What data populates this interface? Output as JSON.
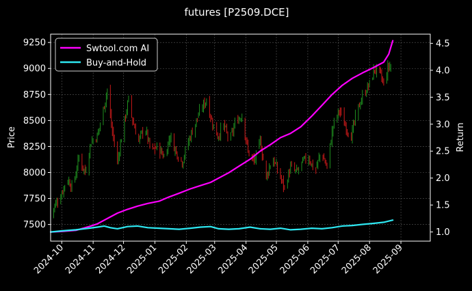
{
  "chart_data": {
    "type": "line",
    "title": "futures [P2509.DCE]",
    "ylabel_left": "Price",
    "ylabel_right": "Return",
    "x_ticks": [
      "2024-10",
      "2024-11",
      "2024-12",
      "2025-01",
      "2025-02",
      "2025-03",
      "2025-04",
      "2025-05",
      "2025-06",
      "2025-07",
      "2025-08",
      "2025-09"
    ],
    "x_range": [
      "2024-09-20",
      "2025-09-30"
    ],
    "y_left_ticks": [
      7500,
      7750,
      8000,
      8250,
      8500,
      8750,
      9000,
      9250
    ],
    "y_left_range": [
      7340,
      9330
    ],
    "y_right_ticks": [
      1.0,
      1.5,
      2.0,
      2.5,
      3.0,
      3.5,
      4.0,
      4.5
    ],
    "y_right_range": [
      0.83,
      4.67
    ],
    "grid": true,
    "legend_position": "top-left",
    "legend": [
      "Swtool.com AI",
      "Buy-and-Hold"
    ],
    "colors": {
      "ai": "#ff00ff",
      "bh": "#2ee8f2",
      "up": "#1f8f1f",
      "down": "#cc1a1a",
      "grid": "#5a5a5a",
      "background": "#000000",
      "text": "#ffffff"
    },
    "price_keypoints": [
      [
        "2024-09-20",
        7600
      ],
      [
        "2024-09-25",
        7700
      ],
      [
        "2024-10-01",
        7800
      ],
      [
        "2024-10-06",
        7950
      ],
      [
        "2024-10-12",
        7850
      ],
      [
        "2024-10-18",
        8150
      ],
      [
        "2024-10-24",
        8000
      ],
      [
        "2024-10-30",
        8300
      ],
      [
        "2024-11-05",
        8350
      ],
      [
        "2024-11-10",
        8550
      ],
      [
        "2024-11-15",
        8800
      ],
      [
        "2024-11-19",
        8450
      ],
      [
        "2024-11-25",
        8100
      ],
      [
        "2024-12-01",
        8450
      ],
      [
        "2024-12-06",
        8700
      ],
      [
        "2024-12-10",
        8500
      ],
      [
        "2024-12-16",
        8300
      ],
      [
        "2024-12-22",
        8450
      ],
      [
        "2024-12-28",
        8200
      ],
      [
        "2025-01-04",
        8250
      ],
      [
        "2025-01-10",
        8150
      ],
      [
        "2025-01-16",
        8350
      ],
      [
        "2025-01-22",
        8200
      ],
      [
        "2025-01-28",
        8100
      ],
      [
        "2025-02-03",
        8300
      ],
      [
        "2025-02-09",
        8450
      ],
      [
        "2025-02-15",
        8600
      ],
      [
        "2025-02-21",
        8700
      ],
      [
        "2025-02-26",
        8500
      ],
      [
        "2025-03-04",
        8350
      ],
      [
        "2025-03-10",
        8450
      ],
      [
        "2025-03-16",
        8300
      ],
      [
        "2025-03-22",
        8500
      ],
      [
        "2025-03-28",
        8550
      ],
      [
        "2025-04-03",
        8200
      ],
      [
        "2025-04-09",
        8100
      ],
      [
        "2025-04-15",
        8300
      ],
      [
        "2025-04-21",
        7950
      ],
      [
        "2025-04-27",
        8150
      ],
      [
        "2025-05-03",
        8000
      ],
      [
        "2025-05-09",
        7850
      ],
      [
        "2025-05-15",
        8050
      ],
      [
        "2025-05-21",
        8000
      ],
      [
        "2025-05-27",
        8100
      ],
      [
        "2025-06-02",
        8150
      ],
      [
        "2025-06-08",
        8000
      ],
      [
        "2025-06-14",
        8200
      ],
      [
        "2025-06-20",
        8050
      ],
      [
        "2025-06-26",
        8450
      ],
      [
        "2025-07-02",
        8600
      ],
      [
        "2025-07-08",
        8450
      ],
      [
        "2025-07-14",
        8350
      ],
      [
        "2025-07-20",
        8600
      ],
      [
        "2025-07-26",
        8750
      ],
      [
        "2025-08-01",
        8850
      ],
      [
        "2025-08-06",
        9000
      ],
      [
        "2025-08-11",
        8950
      ],
      [
        "2025-08-15",
        8850
      ],
      [
        "2025-08-19",
        9000
      ],
      [
        "2025-08-23",
        9050
      ]
    ],
    "series": [
      {
        "name": "Swtool.com AI",
        "x": [
          "2024-09-20",
          "2024-10-01",
          "2024-10-15",
          "2024-10-28",
          "2024-11-05",
          "2024-11-15",
          "2024-11-25",
          "2024-12-05",
          "2024-12-15",
          "2024-12-25",
          "2025-01-05",
          "2025-01-15",
          "2025-01-25",
          "2025-02-05",
          "2025-02-15",
          "2025-02-25",
          "2025-03-05",
          "2025-03-15",
          "2025-03-25",
          "2025-04-05",
          "2025-04-15",
          "2025-04-25",
          "2025-05-05",
          "2025-05-15",
          "2025-05-25",
          "2025-06-05",
          "2025-06-15",
          "2025-06-25",
          "2025-07-05",
          "2025-07-15",
          "2025-07-25",
          "2025-08-05",
          "2025-08-15",
          "2025-08-20",
          "2025-08-24"
        ],
        "values": [
          1.0,
          1.01,
          1.03,
          1.1,
          1.15,
          1.25,
          1.35,
          1.42,
          1.48,
          1.53,
          1.57,
          1.65,
          1.72,
          1.8,
          1.86,
          1.92,
          2.0,
          2.1,
          2.22,
          2.35,
          2.5,
          2.62,
          2.75,
          2.83,
          2.95,
          3.15,
          3.35,
          3.55,
          3.72,
          3.85,
          3.95,
          4.05,
          4.15,
          4.3,
          4.55
        ]
      },
      {
        "name": "Buy-and-Hold",
        "x": [
          "2024-09-20",
          "2024-10-01",
          "2024-10-15",
          "2024-10-28",
          "2024-11-05",
          "2024-11-12",
          "2024-11-18",
          "2024-11-25",
          "2024-12-05",
          "2024-12-15",
          "2024-12-25",
          "2025-01-05",
          "2025-01-15",
          "2025-01-25",
          "2025-02-05",
          "2025-02-15",
          "2025-02-25",
          "2025-03-05",
          "2025-03-15",
          "2025-03-25",
          "2025-04-05",
          "2025-04-15",
          "2025-04-25",
          "2025-05-05",
          "2025-05-15",
          "2025-05-25",
          "2025-06-05",
          "2025-06-15",
          "2025-06-25",
          "2025-07-05",
          "2025-07-15",
          "2025-07-25",
          "2025-08-05",
          "2025-08-15",
          "2025-08-24"
        ],
        "values": [
          1.0,
          1.02,
          1.04,
          1.07,
          1.09,
          1.11,
          1.08,
          1.06,
          1.1,
          1.11,
          1.08,
          1.07,
          1.06,
          1.05,
          1.07,
          1.09,
          1.1,
          1.06,
          1.05,
          1.06,
          1.09,
          1.06,
          1.05,
          1.07,
          1.04,
          1.05,
          1.07,
          1.06,
          1.08,
          1.11,
          1.12,
          1.14,
          1.16,
          1.18,
          1.22
        ]
      }
    ]
  }
}
